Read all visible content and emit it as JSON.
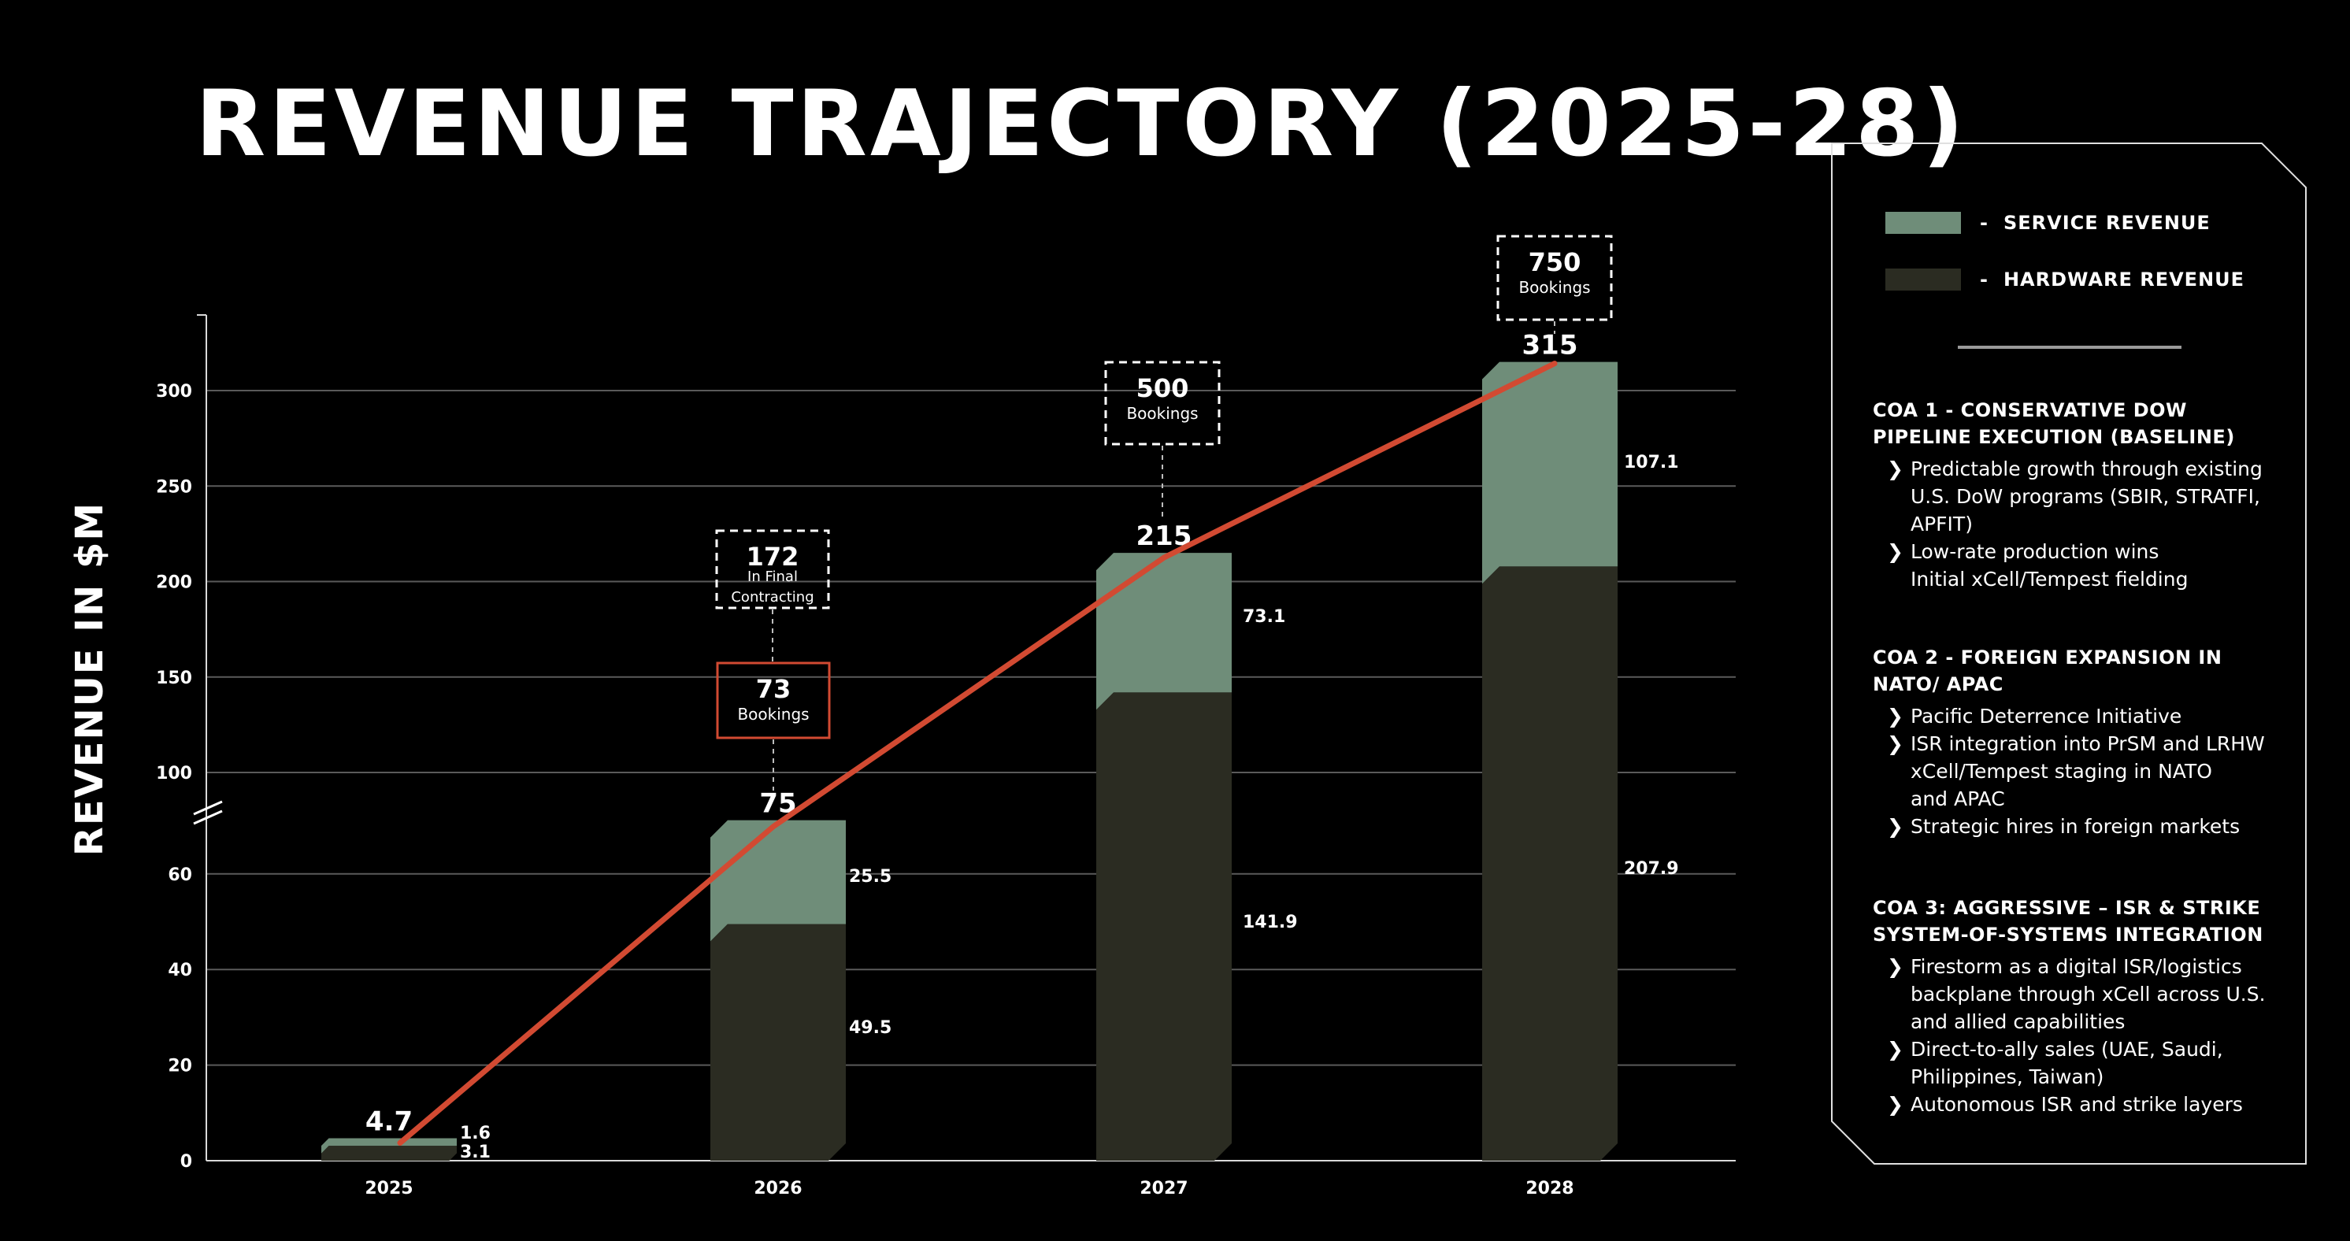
{
  "title": "REVENUE TRAJECTORY (2025-28)",
  "chart_data": {
    "type": "bar",
    "stacked": true,
    "categories": [
      "2025",
      "2026",
      "2027",
      "2028"
    ],
    "series": [
      {
        "name": "HARDWARE REVENUE",
        "values": [
          3.1,
          49.5,
          141.9,
          207.9
        ],
        "color": "#2b2c22"
      },
      {
        "name": "SERVICE REVENUE",
        "values": [
          1.6,
          25.5,
          73.1,
          107.1
        ],
        "color": "#6f8d79"
      }
    ],
    "totals": [
      "4.7",
      "75",
      "215",
      "315"
    ],
    "segment_labels": {
      "hardware": [
        "3.1",
        "49.5",
        "141.9",
        "207.9"
      ],
      "service": [
        "1.6",
        "25.5",
        "73.1",
        "107.1"
      ]
    },
    "trend_line": {
      "values": [
        4.7,
        75,
        215,
        315
      ],
      "color": "#d24a32"
    },
    "ylabel": "REVENUE IN $M",
    "y_ticks": [
      "0",
      "20",
      "40",
      "60",
      "100",
      "150",
      "200",
      "250",
      "300"
    ],
    "y_axis_break": "between 60 and 100",
    "grid": true,
    "annotations": [
      {
        "category": "2026",
        "value": "172",
        "label_lines": [
          "In Final",
          "Contracting"
        ],
        "style": "dashed-white"
      },
      {
        "category": "2026",
        "value": "73",
        "label_lines": [
          "Bookings"
        ],
        "style": "solid-red"
      },
      {
        "category": "2027",
        "value": "500",
        "label_lines": [
          "Bookings"
        ],
        "style": "dashed-white"
      },
      {
        "category": "2028",
        "value": "750",
        "label_lines": [
          "Bookings"
        ],
        "style": "dashed-white"
      }
    ],
    "legend_placement": "right"
  },
  "legend": {
    "service": {
      "label": "SERVICE REVENUE",
      "color": "#6f8d79",
      "dash": "-"
    },
    "hardware": {
      "label": "HARDWARE REVENUE",
      "color": "#2b2c22",
      "dash": "-"
    }
  },
  "coas": [
    {
      "title": "COA 1 - CONSERVATIVE DOW PIPELINE EXECUTION (BASELINE)",
      "items": [
        "Predictable growth through existing U.S. DoW programs (SBIR, STRATFI, APFIT)",
        "Low-rate production wins\nInitial xCell/Tempest fielding"
      ]
    },
    {
      "title": "COA 2 - FOREIGN EXPANSION IN NATO/ APAC",
      "items": [
        "Pacific Deterrence Initiative",
        "ISR integration into PrSM and LRHW\nxCell/Tempest staging in NATO\nand APAC",
        "Strategic hires in foreign markets"
      ]
    },
    {
      "title": "COA 3: AGGRESSIVE – ISR & STRIKE SYSTEM-OF-SYSTEMS INTEGRATION",
      "items": [
        "Firestorm as a digital ISR/logistics backplane through xCell across U.S. and allied capabilities",
        "Direct-to-ally sales (UAE, Saudi, Philippines, Taiwan)",
        "Autonomous ISR and strike layers"
      ]
    }
  ]
}
